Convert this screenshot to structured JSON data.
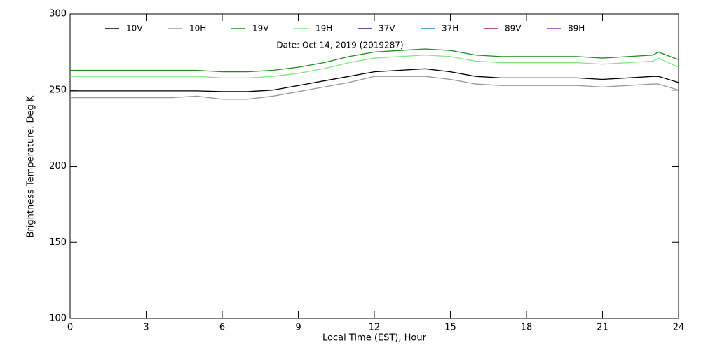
{
  "chart_data": {
    "type": "line",
    "annotation": "Date: Oct 14, 2019 (2019287)",
    "x_label": "Local Time (EST), Hour",
    "y_label": "Brightness Temperature, Deg K",
    "x": [
      0,
      1,
      2,
      3,
      4,
      5,
      6,
      7,
      8,
      9,
      10,
      11,
      12,
      13,
      14,
      15,
      16,
      17,
      18,
      19,
      20,
      21,
      22,
      23,
      23.2,
      24
    ],
    "xlim": [
      0,
      24
    ],
    "xticks": [
      0,
      3,
      6,
      9,
      12,
      15,
      18,
      21,
      24
    ],
    "ylim": [
      100,
      300
    ],
    "yticks": [
      100,
      150,
      200,
      250,
      300
    ],
    "grid": false,
    "series": [
      {
        "name": "10V",
        "color": "#000000",
        "values": [
          249.5,
          249.5,
          249.5,
          249.5,
          249.5,
          249.5,
          249,
          249,
          250,
          253,
          256,
          259,
          262,
          263,
          264,
          262,
          259,
          258,
          258,
          258,
          258,
          257,
          258,
          259,
          259,
          255
        ]
      },
      {
        "name": "10H",
        "color": "#999999",
        "values": [
          245,
          245,
          245,
          245,
          245,
          246,
          244,
          244,
          246,
          249,
          252,
          255,
          259,
          259,
          259,
          257,
          254,
          253,
          253,
          253,
          253,
          252,
          253,
          254,
          254,
          250
        ]
      },
      {
        "name": "19V",
        "color": "#1f8f1f",
        "values": [
          263,
          263,
          263,
          263,
          263,
          263,
          262,
          262,
          263,
          265,
          268,
          272,
          275,
          276,
          277,
          276,
          273,
          272,
          272,
          272,
          272,
          271,
          272,
          273,
          275,
          270
        ]
      },
      {
        "name": "19H",
        "color": "#80e880",
        "values": [
          259,
          259,
          259,
          259,
          259,
          259,
          258,
          258,
          259,
          261,
          264,
          268,
          271,
          272,
          273,
          272,
          269,
          268,
          268,
          268,
          268,
          267,
          268,
          269,
          271,
          265
        ]
      },
      {
        "name": "37V",
        "color": "#1a1a8c",
        "values": [
          null,
          null,
          null,
          null,
          null,
          null,
          null,
          null,
          null,
          null,
          null,
          null,
          null,
          null,
          null,
          null,
          null,
          null,
          null,
          null,
          null,
          null,
          null,
          null,
          null,
          null
        ]
      },
      {
        "name": "37H",
        "color": "#1a8cc8",
        "values": [
          null,
          null,
          null,
          null,
          null,
          null,
          null,
          null,
          null,
          null,
          null,
          null,
          null,
          null,
          null,
          null,
          null,
          null,
          null,
          null,
          null,
          null,
          null,
          null,
          null,
          null
        ]
      },
      {
        "name": "89V",
        "color": "#b22245",
        "values": [
          null,
          null,
          null,
          null,
          null,
          null,
          null,
          null,
          null,
          null,
          null,
          null,
          null,
          null,
          null,
          null,
          null,
          null,
          null,
          null,
          null,
          null,
          null,
          null,
          null,
          null
        ]
      },
      {
        "name": "89H",
        "color": "#9b30c0",
        "values": [
          null,
          null,
          null,
          null,
          null,
          null,
          null,
          null,
          null,
          null,
          null,
          null,
          null,
          null,
          null,
          null,
          null,
          null,
          null,
          null,
          null,
          null,
          null,
          null,
          null,
          null
        ]
      }
    ]
  }
}
